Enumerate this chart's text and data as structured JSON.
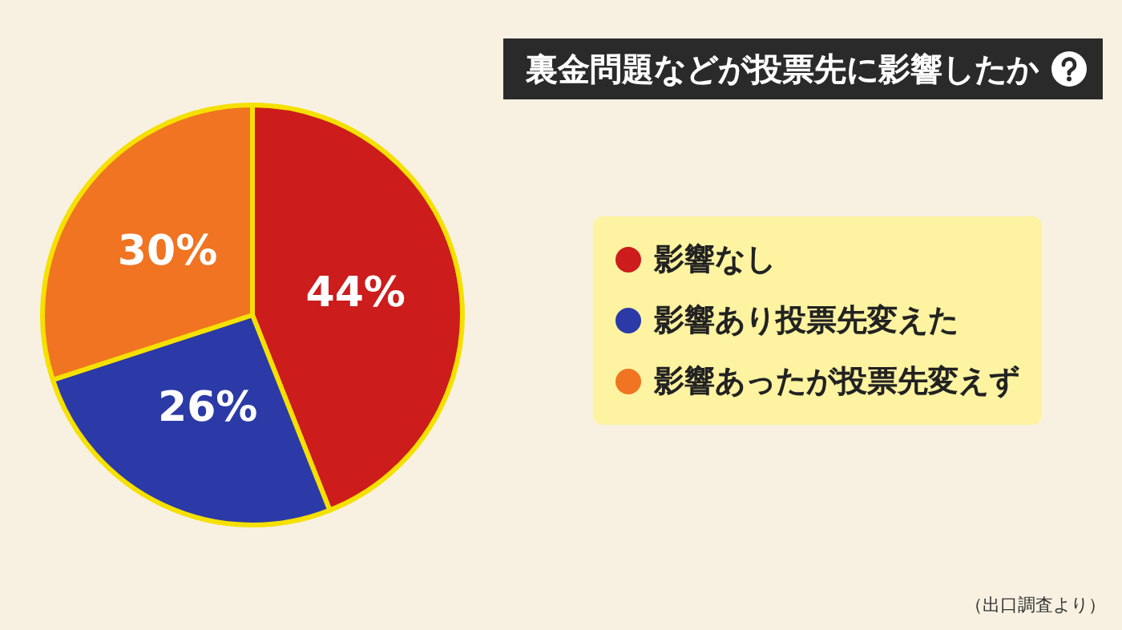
{
  "chart_data": {
    "type": "pie",
    "title": "裏金問題などが投票先に影響したか",
    "categories": [
      "影響なし",
      "影響あり投票先変えた",
      "影響あったが投票先変えず"
    ],
    "values": [
      44,
      26,
      30
    ],
    "colors": [
      "#cc1c1c",
      "#2b3aa6",
      "#f07422"
    ],
    "value_labels": [
      "44%",
      "26%",
      "30%"
    ],
    "legend": "right",
    "annotations": [
      "（出口調査より）"
    ]
  }
}
